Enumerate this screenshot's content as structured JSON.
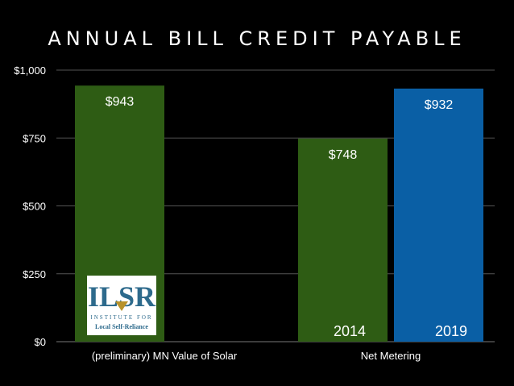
{
  "chart_data": {
    "type": "bar",
    "title": "ANNUAL BILL CREDIT PAYABLE",
    "categories": [
      "(preliminary) MN Value of Solar",
      "Net Metering"
    ],
    "series": [
      {
        "name": "2014",
        "color": "#2e5c14",
        "values": [
          943,
          748
        ],
        "labels": [
          "$943",
          "$748"
        ]
      },
      {
        "name": "2019",
        "color": "#0a5fa5",
        "values": [
          null,
          932
        ],
        "labels": [
          null,
          "$932"
        ]
      }
    ],
    "ylim": [
      0,
      1000
    ],
    "yticks": [
      0,
      250,
      500,
      750,
      1000
    ],
    "ytick_labels": [
      "$0",
      "$250",
      "$500",
      "$750",
      "$1,000"
    ],
    "grid": true,
    "legend": "bottom-right",
    "xlabel": "",
    "ylabel": ""
  },
  "logo": {
    "text_main": "ILSR",
    "text_sub1": "INSTITUTE FOR",
    "text_sub2": "Local Self-Reliance",
    "color": "#2d6a8c",
    "accent": "#b8922a"
  }
}
